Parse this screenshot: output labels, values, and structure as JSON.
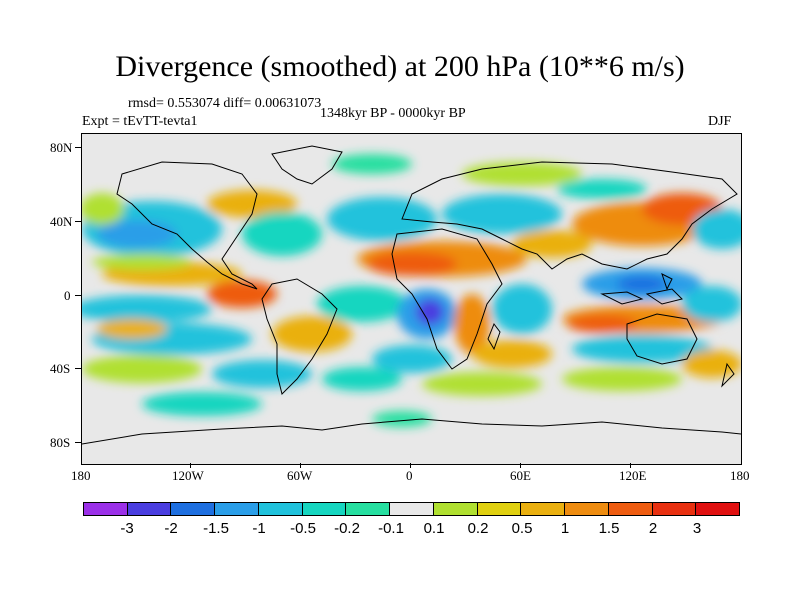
{
  "header": {
    "title": "Divergence (smoothed) at 200 hPa (10**6 m/s)",
    "stats": "rmsd= 0.553074 diff= 0.00631073",
    "period": "1348kyr BP - 0000kyr BP",
    "experiment": "Expt = tEvTT-tevta1",
    "season": "DJF"
  },
  "axes": {
    "lat_labels": [
      "80N",
      "40N",
      "0",
      "40S",
      "80S"
    ],
    "lon_labels": [
      "180",
      "120W",
      "60W",
      "0",
      "60E",
      "120E",
      "180"
    ]
  },
  "colorbar": {
    "labels": [
      "-3",
      "-2",
      "-1.5",
      "-1",
      "-0.5",
      "-0.2",
      "-0.1",
      "0.1",
      "0.2",
      "0.5",
      "1",
      "1.5",
      "2",
      "3"
    ],
    "colors": [
      "#9b30e8",
      "#4a3ee0",
      "#1e6fe0",
      "#2a9ee8",
      "#20c2dc",
      "#16d6c0",
      "#26dfa0",
      "#e8e8e8",
      "#b0e030",
      "#e0d010",
      "#eab010",
      "#ee8c10",
      "#ee5c10",
      "#e83010",
      "#e01010"
    ]
  },
  "map_colors": {
    "neutral": "#e8e8e8",
    "neg_weak": "#26dfa0",
    "neg_small": "#16d6c0",
    "neg_mid": "#20c2dc",
    "neg_strong": "#2a9ee8",
    "neg_deep": "#1e6fe0",
    "neg_max": "#4a3ee0",
    "neg_core": "#9b30e8",
    "pos_weak": "#b0e030",
    "pos_small": "#e0d010",
    "pos_mid": "#eab010",
    "pos_strong": "#ee8c10",
    "pos_deep": "#ee5c10",
    "pos_max": "#e83010",
    "coast": "#000000"
  }
}
